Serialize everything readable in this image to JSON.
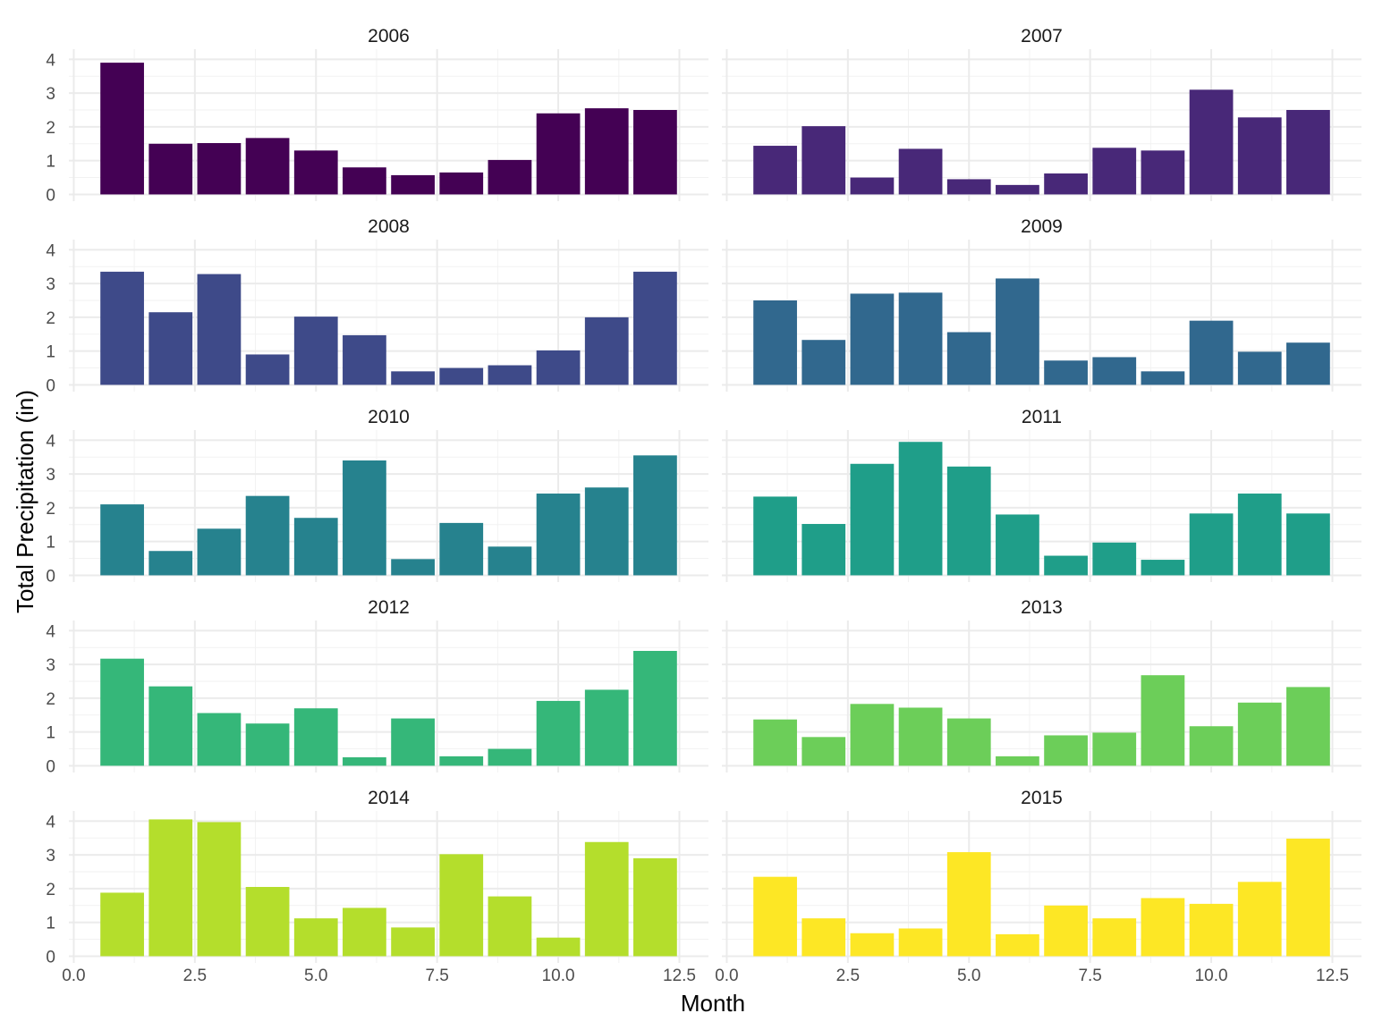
{
  "chart_data": {
    "type": "bar",
    "facet": "year",
    "xlabel": "Month",
    "ylabel": "Total Precipitation (in)",
    "xlim": [
      0,
      12.5
    ],
    "ylim": [
      0,
      4
    ],
    "x_ticks": [
      "0.0",
      "2.5",
      "5.0",
      "7.5",
      "10.0",
      "12.5"
    ],
    "y_ticks": [
      "0",
      "1",
      "2",
      "3",
      "4"
    ],
    "grid": true,
    "months": [
      1,
      2,
      3,
      4,
      5,
      6,
      7,
      8,
      9,
      10,
      11,
      12
    ],
    "panels": [
      {
        "year": "2006",
        "color": "#440154",
        "values": [
          3.9,
          1.5,
          1.52,
          1.67,
          1.3,
          0.8,
          0.57,
          0.65,
          1.02,
          2.4,
          2.55,
          2.5
        ]
      },
      {
        "year": "2007",
        "color": "#482878",
        "values": [
          1.44,
          2.02,
          0.5,
          1.35,
          0.45,
          0.28,
          0.62,
          1.38,
          1.3,
          3.1,
          2.28,
          2.5
        ]
      },
      {
        "year": "2008",
        "color": "#3E4A89",
        "values": [
          3.35,
          2.15,
          3.28,
          0.9,
          2.02,
          1.47,
          0.4,
          0.5,
          0.58,
          1.02,
          2.0,
          3.35
        ]
      },
      {
        "year": "2009",
        "color": "#31688E",
        "values": [
          2.5,
          1.33,
          2.7,
          2.73,
          1.56,
          3.15,
          0.72,
          0.82,
          0.4,
          1.9,
          0.98,
          1.25
        ]
      },
      {
        "year": "2010",
        "color": "#26828E",
        "values": [
          2.1,
          0.72,
          1.38,
          2.35,
          1.7,
          3.4,
          0.48,
          1.55,
          0.85,
          2.42,
          2.6,
          3.55
        ]
      },
      {
        "year": "2011",
        "color": "#1F9E89",
        "values": [
          2.33,
          1.52,
          3.3,
          3.95,
          3.22,
          1.8,
          0.58,
          0.97,
          0.46,
          1.83,
          2.42,
          1.83
        ]
      },
      {
        "year": "2012",
        "color": "#35B779",
        "values": [
          3.17,
          2.35,
          1.56,
          1.25,
          1.7,
          0.25,
          1.4,
          0.28,
          0.5,
          1.92,
          2.25,
          3.4
        ]
      },
      {
        "year": "2013",
        "color": "#6CCE59",
        "values": [
          1.37,
          0.85,
          1.83,
          1.72,
          1.4,
          0.28,
          0.9,
          0.98,
          2.68,
          1.17,
          1.87,
          2.33
        ]
      },
      {
        "year": "2014",
        "color": "#B4DE2C",
        "values": [
          1.88,
          4.05,
          3.97,
          2.05,
          1.12,
          1.43,
          0.85,
          3.02,
          1.77,
          0.55,
          3.38,
          2.9
        ]
      },
      {
        "year": "2015",
        "color": "#FDE725",
        "values": [
          2.35,
          1.12,
          0.68,
          0.82,
          3.08,
          0.65,
          1.5,
          1.12,
          1.72,
          1.55,
          2.2,
          3.48
        ]
      }
    ]
  }
}
